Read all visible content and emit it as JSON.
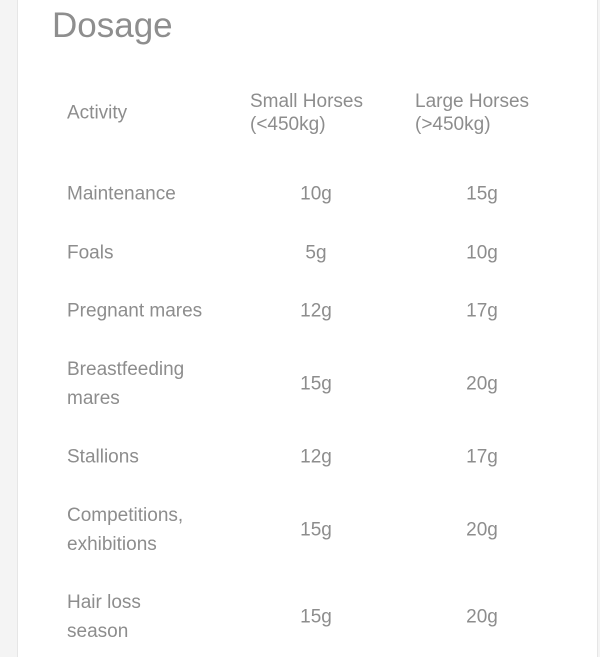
{
  "title": "Dosage",
  "table": {
    "headers": [
      "Activity",
      "Small Horses (<450kg)",
      "Large Horses (>450kg)"
    ],
    "header_lines": [
      [
        "Small Horses",
        "(<450kg)"
      ],
      [
        "Large Horses",
        "(>450kg)"
      ]
    ],
    "rows": [
      {
        "activity": "Maintenance",
        "small": "10g",
        "large": "15g"
      },
      {
        "activity": "Foals",
        "small": "5g",
        "large": "10g"
      },
      {
        "activity": "Pregnant mares",
        "small": "12g",
        "large": "17g"
      },
      {
        "activity": "Breastfeeding mares",
        "small": "15g",
        "large": "20g"
      },
      {
        "activity": "Stallions",
        "small": "12g",
        "large": "17g"
      },
      {
        "activity": "Competitions, exhibitions",
        "small": "15g",
        "large": "20g"
      },
      {
        "activity": "Hair loss season",
        "small": "15g",
        "large": "20g"
      }
    ]
  }
}
